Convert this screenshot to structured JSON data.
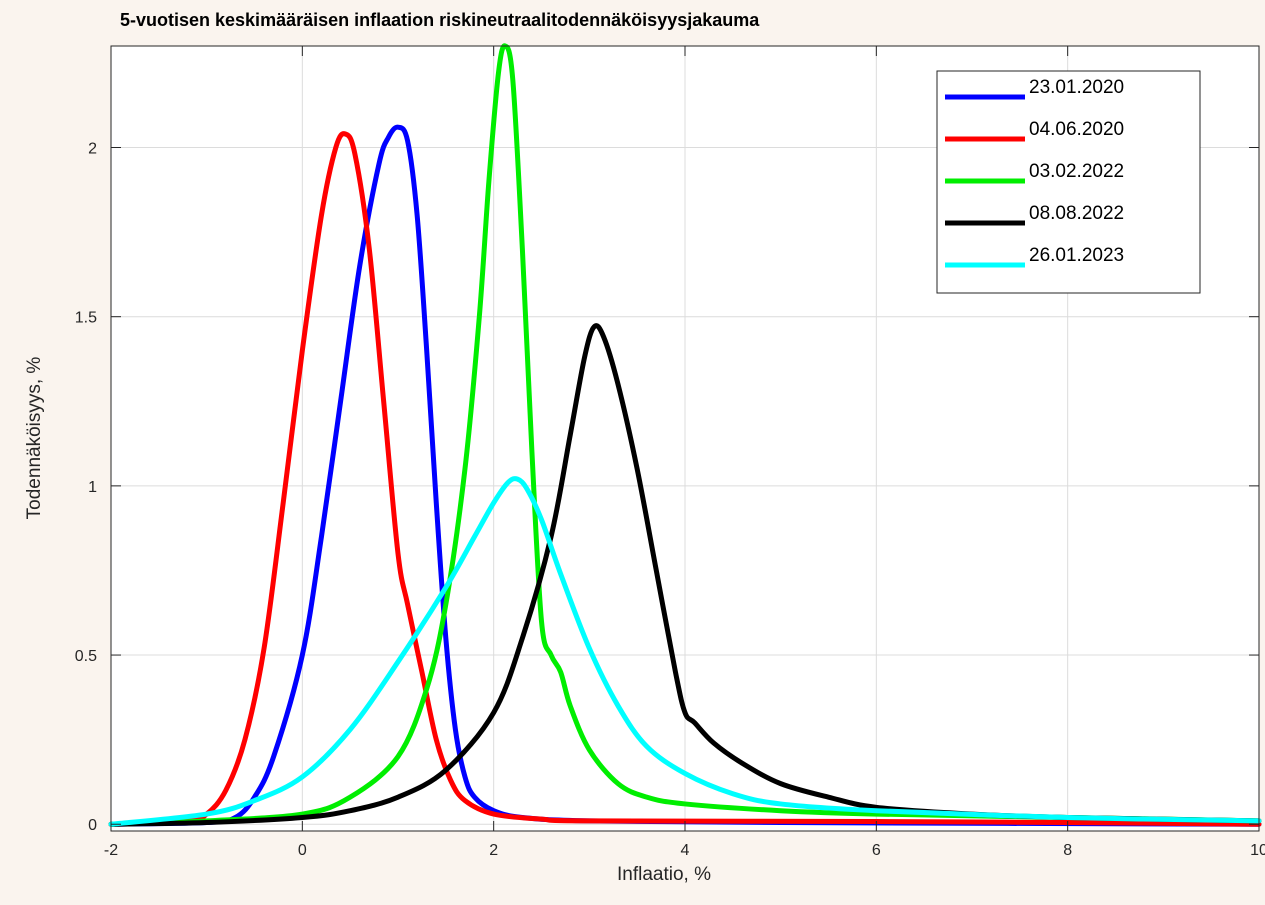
{
  "chart_data": {
    "type": "line",
    "title": "5-vuotisen keskimääräisen inflaation riskineutraalitodennäköisyysjakauma",
    "xlabel": "Inflaatio, %",
    "ylabel": "Todennäköisyys, %",
    "xlim": [
      -2,
      10
    ],
    "ylim": [
      -0.02,
      2.3
    ],
    "xticks": [
      -2,
      0,
      2,
      4,
      6,
      8,
      10
    ],
    "xtick_labels": [
      "-2",
      "0",
      "2",
      "4",
      "6",
      "8",
      "10"
    ],
    "yticks": [
      0,
      0.5,
      1,
      1.5,
      2
    ],
    "ytick_labels": [
      "0",
      "0.5",
      "1",
      "1.5",
      "2"
    ],
    "grid": true,
    "legend_position": "top-right",
    "series": [
      {
        "name": "23.01.2020",
        "color": "#0000ff",
        "points": [
          [
            -2,
            0
          ],
          [
            -1,
            0.005
          ],
          [
            -0.7,
            0.02
          ],
          [
            -0.5,
            0.08
          ],
          [
            -0.3,
            0.2
          ],
          [
            0,
            0.5
          ],
          [
            0.2,
            0.85
          ],
          [
            0.4,
            1.25
          ],
          [
            0.6,
            1.65
          ],
          [
            0.8,
            1.95
          ],
          [
            0.9,
            2.03
          ],
          [
            1.0,
            2.06
          ],
          [
            1.1,
            2.02
          ],
          [
            1.2,
            1.8
          ],
          [
            1.3,
            1.4
          ],
          [
            1.4,
            0.95
          ],
          [
            1.5,
            0.55
          ],
          [
            1.6,
            0.28
          ],
          [
            1.7,
            0.14
          ],
          [
            1.8,
            0.08
          ],
          [
            2.0,
            0.04
          ],
          [
            2.3,
            0.02
          ],
          [
            3,
            0.01
          ],
          [
            5,
            0.005
          ],
          [
            10,
            0
          ]
        ]
      },
      {
        "name": "04.06.2020",
        "color": "#ff0000",
        "points": [
          [
            -2,
            0
          ],
          [
            -1.2,
            0.01
          ],
          [
            -1.0,
            0.03
          ],
          [
            -0.8,
            0.1
          ],
          [
            -0.6,
            0.25
          ],
          [
            -0.4,
            0.52
          ],
          [
            -0.2,
            0.95
          ],
          [
            0,
            1.4
          ],
          [
            0.2,
            1.8
          ],
          [
            0.35,
            2.0
          ],
          [
            0.45,
            2.04
          ],
          [
            0.55,
            1.98
          ],
          [
            0.7,
            1.7
          ],
          [
            0.85,
            1.25
          ],
          [
            1.0,
            0.8
          ],
          [
            1.1,
            0.65
          ],
          [
            1.25,
            0.45
          ],
          [
            1.4,
            0.25
          ],
          [
            1.55,
            0.13
          ],
          [
            1.7,
            0.07
          ],
          [
            2.0,
            0.03
          ],
          [
            2.5,
            0.015
          ],
          [
            3,
            0.01
          ],
          [
            6,
            0.008
          ],
          [
            8,
            0.005
          ],
          [
            10,
            0
          ]
        ]
      },
      {
        "name": "03.02.2022",
        "color": "#00ee00",
        "points": [
          [
            -2,
            0
          ],
          [
            -1,
            0.01
          ],
          [
            0,
            0.03
          ],
          [
            0.5,
            0.08
          ],
          [
            1.0,
            0.2
          ],
          [
            1.3,
            0.4
          ],
          [
            1.5,
            0.65
          ],
          [
            1.7,
            1.05
          ],
          [
            1.85,
            1.5
          ],
          [
            1.95,
            1.9
          ],
          [
            2.05,
            2.22
          ],
          [
            2.12,
            2.3
          ],
          [
            2.2,
            2.2
          ],
          [
            2.3,
            1.7
          ],
          [
            2.4,
            1.1
          ],
          [
            2.5,
            0.6
          ],
          [
            2.6,
            0.5
          ],
          [
            2.7,
            0.45
          ],
          [
            2.8,
            0.35
          ],
          [
            3.0,
            0.22
          ],
          [
            3.3,
            0.12
          ],
          [
            3.6,
            0.08
          ],
          [
            4.0,
            0.06
          ],
          [
            5,
            0.04
          ],
          [
            6,
            0.03
          ],
          [
            8,
            0.02
          ],
          [
            10,
            0.01
          ]
        ]
      },
      {
        "name": "08.08.2022",
        "color": "#000000",
        "points": [
          [
            -2,
            0
          ],
          [
            -1,
            0.005
          ],
          [
            0,
            0.02
          ],
          [
            0.5,
            0.04
          ],
          [
            1.0,
            0.08
          ],
          [
            1.5,
            0.16
          ],
          [
            2.0,
            0.33
          ],
          [
            2.3,
            0.55
          ],
          [
            2.6,
            0.85
          ],
          [
            2.8,
            1.15
          ],
          [
            2.95,
            1.38
          ],
          [
            3.05,
            1.47
          ],
          [
            3.15,
            1.44
          ],
          [
            3.3,
            1.3
          ],
          [
            3.5,
            1.05
          ],
          [
            3.7,
            0.75
          ],
          [
            3.9,
            0.45
          ],
          [
            4.0,
            0.33
          ],
          [
            4.1,
            0.3
          ],
          [
            4.3,
            0.24
          ],
          [
            4.6,
            0.18
          ],
          [
            5.0,
            0.12
          ],
          [
            5.5,
            0.08
          ],
          [
            6,
            0.05
          ],
          [
            7,
            0.03
          ],
          [
            8,
            0.02
          ],
          [
            10,
            0.01
          ]
        ]
      },
      {
        "name": "26.01.2023",
        "color": "#00ffff",
        "points": [
          [
            -2,
            0
          ],
          [
            -1,
            0.03
          ],
          [
            -0.5,
            0.07
          ],
          [
            0,
            0.14
          ],
          [
            0.5,
            0.28
          ],
          [
            1.0,
            0.48
          ],
          [
            1.5,
            0.7
          ],
          [
            1.8,
            0.85
          ],
          [
            2.0,
            0.95
          ],
          [
            2.15,
            1.01
          ],
          [
            2.25,
            1.02
          ],
          [
            2.35,
            0.99
          ],
          [
            2.5,
            0.9
          ],
          [
            2.7,
            0.74
          ],
          [
            3.0,
            0.52
          ],
          [
            3.3,
            0.35
          ],
          [
            3.6,
            0.23
          ],
          [
            4.0,
            0.15
          ],
          [
            4.5,
            0.09
          ],
          [
            5,
            0.06
          ],
          [
            6,
            0.04
          ],
          [
            8,
            0.02
          ],
          [
            10,
            0.01
          ]
        ]
      }
    ]
  }
}
